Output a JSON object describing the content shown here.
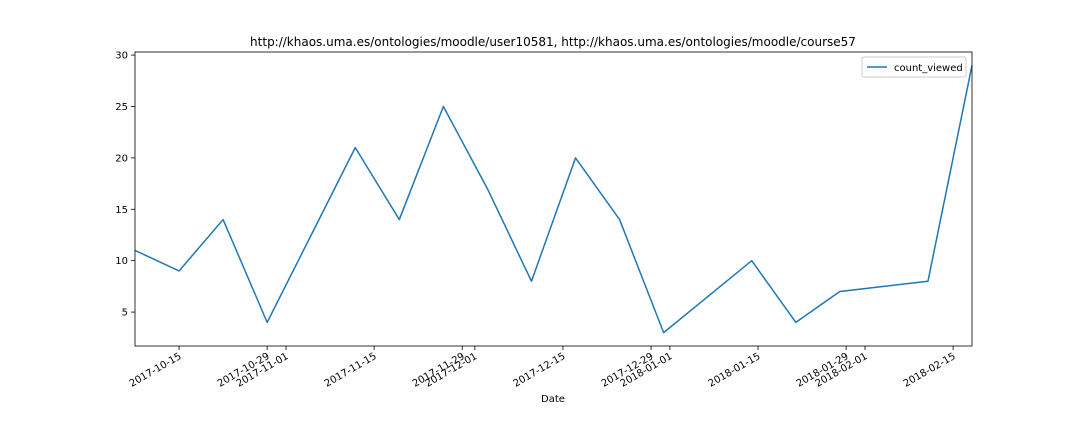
{
  "chart_data": {
    "type": "line",
    "title": "http://khaos.uma.es/ontologies/moodle/user10581, http://khaos.uma.es/ontologies/moodle/course57",
    "xlabel": "Date",
    "ylabel": "",
    "x": [
      "2017-10-08",
      "2017-10-15",
      "2017-10-22",
      "2017-10-29",
      "2017-11-05",
      "2017-11-12",
      "2017-11-19",
      "2017-11-26",
      "2017-12-03",
      "2017-12-10",
      "2017-12-17",
      "2017-12-24",
      "2017-12-31",
      "2018-01-07",
      "2018-01-14",
      "2018-01-21",
      "2018-01-28",
      "2018-02-04",
      "2018-02-11",
      "2018-02-18"
    ],
    "series": [
      {
        "name": "count_viewed",
        "color": "#1f77b4",
        "values": [
          11,
          9,
          14,
          4,
          12.5,
          21,
          14,
          25,
          17,
          8,
          20,
          14,
          3,
          6.5,
          10,
          4,
          7,
          7.5,
          8,
          29
        ]
      }
    ],
    "xlim": [
      "2017-10-08",
      "2018-02-18"
    ],
    "ylim": [
      1.7,
      30.3
    ],
    "yticks": [
      5,
      10,
      15,
      20,
      25,
      30
    ],
    "xticks": [
      {
        "date": "2017-10-15",
        "label": "2017-10-15"
      },
      {
        "date": "2017-10-29",
        "label": "2017-10-29"
      },
      {
        "date": "2017-11-01",
        "label": "2017-11-01"
      },
      {
        "date": "2017-11-15",
        "label": "2017-11-15"
      },
      {
        "date": "2017-11-29",
        "label": "2017-11-29"
      },
      {
        "date": "2017-12-01",
        "label": "2017-12-01"
      },
      {
        "date": "2017-12-15",
        "label": "2017-12-15"
      },
      {
        "date": "2017-12-29",
        "label": "2017-12-29"
      },
      {
        "date": "2018-01-01",
        "label": "2018-01-01"
      },
      {
        "date": "2018-01-15",
        "label": "2018-01-15"
      },
      {
        "date": "2018-01-29",
        "label": "2018-01-29"
      },
      {
        "date": "2018-02-01",
        "label": "2018-02-01"
      },
      {
        "date": "2018-02-15",
        "label": "2018-02-15"
      }
    ],
    "grid": false,
    "legend_position": "top-right"
  }
}
